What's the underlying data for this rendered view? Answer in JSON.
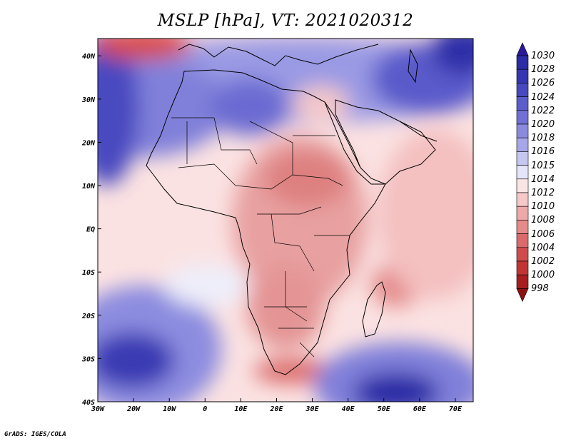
{
  "title": "MSLP [hPa], VT: 2021020312",
  "credit": "GrADS: IGES/COLA",
  "map": {
    "lon_range": [
      -30,
      75
    ],
    "lat_range": [
      -40,
      44
    ],
    "lon_ticks": [
      {
        "value": -30,
        "label": "30W"
      },
      {
        "value": -20,
        "label": "20W"
      },
      {
        "value": -10,
        "label": "10W"
      },
      {
        "value": 0,
        "label": "0"
      },
      {
        "value": 10,
        "label": "10E"
      },
      {
        "value": 20,
        "label": "20E"
      },
      {
        "value": 30,
        "label": "30E"
      },
      {
        "value": 40,
        "label": "40E"
      },
      {
        "value": 50,
        "label": "50E"
      },
      {
        "value": 60,
        "label": "60E"
      },
      {
        "value": 70,
        "label": "70E"
      }
    ],
    "lat_ticks": [
      {
        "value": 40,
        "label": "40N"
      },
      {
        "value": 30,
        "label": "30N"
      },
      {
        "value": 20,
        "label": "20N"
      },
      {
        "value": 10,
        "label": "10N"
      },
      {
        "value": 0,
        "label": "EQ"
      },
      {
        "value": -10,
        "label": "10S"
      },
      {
        "value": -20,
        "label": "20S"
      },
      {
        "value": -30,
        "label": "30S"
      },
      {
        "value": -40,
        "label": "40S"
      }
    ],
    "pressure_features": [
      {
        "name": "North Atlantic high",
        "lon": -30,
        "lat": 31,
        "value": 1026
      },
      {
        "name": "Low off Iberia",
        "lon": -21,
        "lat": 44,
        "value": 1004
      },
      {
        "name": "Sahara ridge",
        "lon": 5,
        "lat": 28,
        "value": 1022
      },
      {
        "name": "Central Asia high",
        "lon": 72,
        "lat": 43,
        "value": 1028
      },
      {
        "name": "South Atlantic high",
        "lon": -22,
        "lat": -30,
        "value": 1026
      },
      {
        "name": "Southern Indian Ocean high",
        "lon": 55,
        "lat": -36,
        "value": 1028
      },
      {
        "name": "Central Africa trough",
        "lon": 25,
        "lat": 5,
        "value": 1008
      },
      {
        "name": "Low east of Madagascar",
        "lon": 55,
        "lat": -13,
        "value": 1008
      },
      {
        "name": "Low south of Africa",
        "lon": 30,
        "lat": -34,
        "value": 1006
      }
    ]
  },
  "colorbar": {
    "levels": [
      "1030",
      "1028",
      "1026",
      "1024",
      "1022",
      "1020",
      "1018",
      "1016",
      "1015",
      "1014",
      "1012",
      "1010",
      "1008",
      "1006",
      "1004",
      "1002",
      "1000",
      "998"
    ],
    "colors": [
      "#2a1a9a",
      "#2c2ca6",
      "#3636b2",
      "#4848c0",
      "#5c5ccc",
      "#7070d6",
      "#8a8ae0",
      "#a6a6ea",
      "#c6c6f2",
      "#e4e4fa",
      "#fbe4e4",
      "#f6c8c8",
      "#eea8a8",
      "#e68a8a",
      "#dc6a6a",
      "#d04c4c",
      "#c23434",
      "#a81e1e",
      "#8c1010"
    ]
  }
}
